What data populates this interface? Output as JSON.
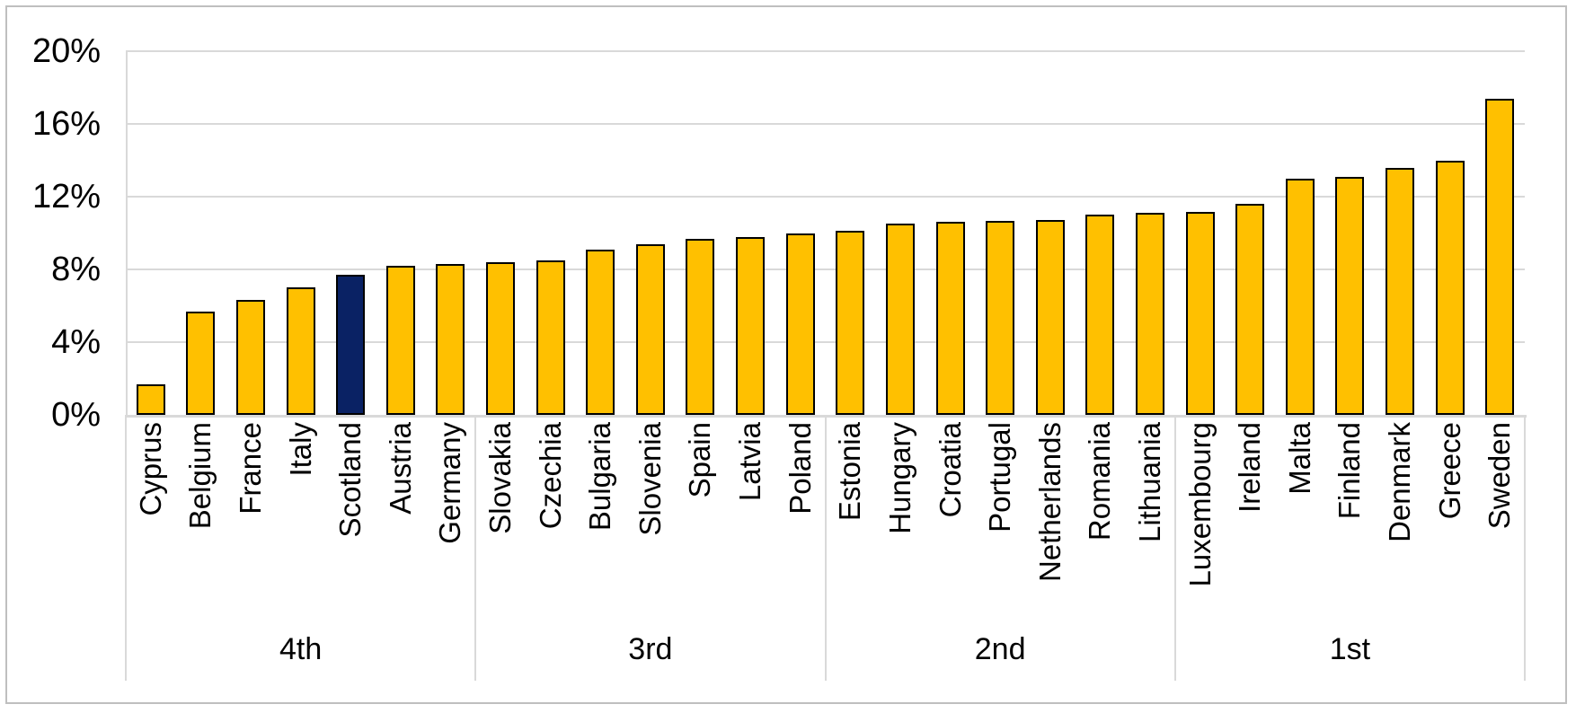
{
  "chart_data": {
    "type": "bar",
    "title": "",
    "xlabel": "",
    "ylabel": "",
    "ylim": [
      0,
      20
    ],
    "grid": true,
    "y_tick_labels": [
      "20%",
      "16%",
      "12%",
      "8%",
      "4%",
      "0%"
    ],
    "y_tick_values": [
      20,
      16,
      12,
      8,
      4,
      0
    ],
    "categories": [
      "Cyprus",
      "Belgium",
      "France",
      "Italy",
      "Scotland",
      "Austria",
      "Germany",
      "Slovakia",
      "Czechia",
      "Bulgaria",
      "Slovenia",
      "Spain",
      "Latvia",
      "Poland",
      "Estonia",
      "Hungary",
      "Croatia",
      "Portugal",
      "Netherlands",
      "Romania",
      "Lithuania",
      "Luxembourg",
      "Ireland",
      "Malta",
      "Finland",
      "Denmark",
      "Greece",
      "Sweden"
    ],
    "values": [
      1.7,
      5.7,
      6.3,
      7.0,
      7.7,
      8.2,
      8.3,
      8.4,
      8.5,
      9.1,
      9.4,
      9.7,
      9.8,
      10.0,
      10.1,
      10.5,
      10.6,
      10.65,
      10.7,
      11.0,
      11.1,
      11.15,
      11.6,
      13.0,
      13.1,
      13.6,
      14.0,
      17.4
    ],
    "group_labels": [
      "4th",
      "3rd",
      "2nd",
      "1st"
    ],
    "categories_per_group": 7,
    "highlighted_category": "Scotland",
    "colors": {
      "bar_fill": "#FFC000",
      "highlight_fill": "#0A2264",
      "bar_border": "#000000",
      "gridline": "#D9D9D9",
      "frame_border": "#BFBFBF",
      "text": "#000000",
      "background": "#FFFFFF"
    }
  }
}
